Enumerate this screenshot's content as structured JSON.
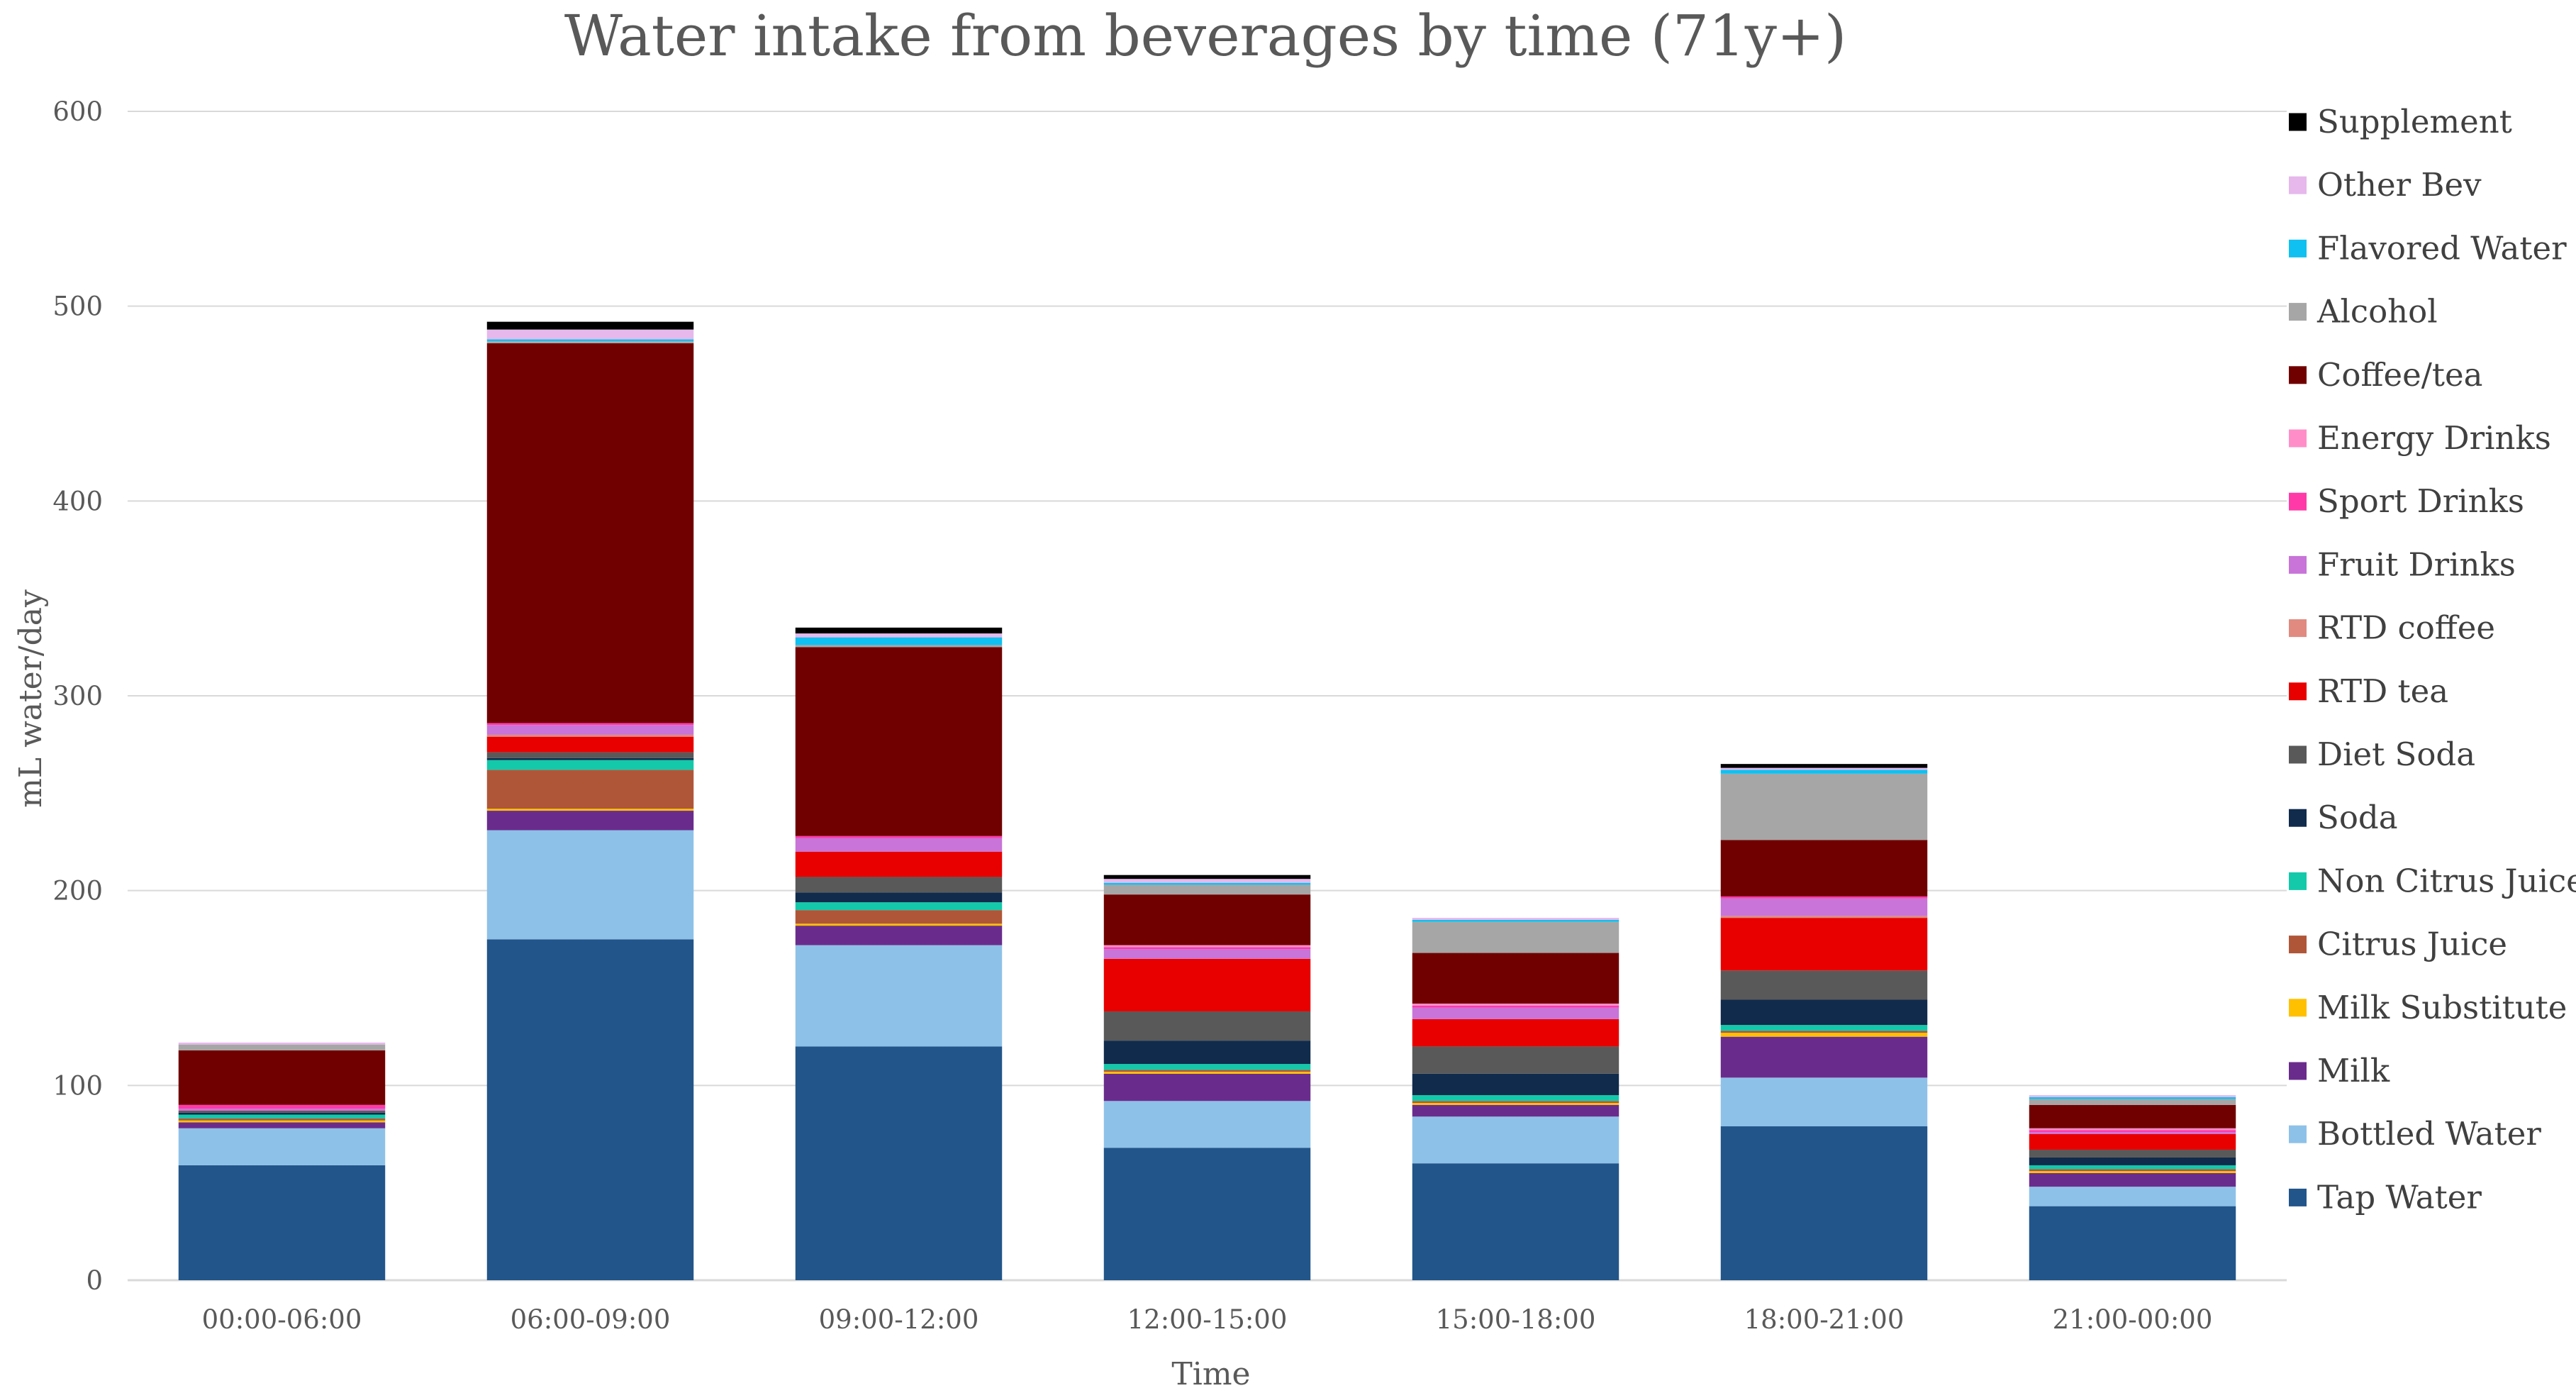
{
  "chart_data": {
    "type": "bar",
    "stacked": true,
    "title": "Water intake from beverages by time (71y+)",
    "xlabel": "Time",
    "ylabel": "mL water/day",
    "ylim": [
      0,
      600
    ],
    "yticks": [
      0,
      100,
      200,
      300,
      400,
      500,
      600
    ],
    "grid": true,
    "legend_position": "right",
    "categories": [
      "00:00-06:00",
      "06:00-09:00",
      "09:00-12:00",
      "12:00-15:00",
      "15:00-18:00",
      "18:00-21:00",
      "21:00-00:00"
    ],
    "series": [
      {
        "name": "Tap Water",
        "color": "#22558A",
        "values": [
          59,
          175,
          120,
          68,
          60,
          79,
          38
        ]
      },
      {
        "name": "Bottled Water",
        "color": "#8EC1E8",
        "values": [
          19,
          56,
          52,
          24,
          24,
          25,
          10
        ]
      },
      {
        "name": "Milk",
        "color": "#6A2C8C",
        "values": [
          3,
          10,
          10,
          14,
          6,
          21,
          7
        ]
      },
      {
        "name": "Milk Substitute",
        "color": "#FFC000",
        "values": [
          1,
          1,
          1,
          1,
          1,
          2,
          1
        ]
      },
      {
        "name": "Citrus Juice",
        "color": "#B05638",
        "values": [
          1,
          20,
          7,
          1,
          1,
          1,
          1
        ]
      },
      {
        "name": "Non Citrus Juice",
        "color": "#13C9AA",
        "values": [
          2,
          5,
          4,
          3,
          3,
          3,
          2
        ]
      },
      {
        "name": "Soda",
        "color": "#102B4C",
        "values": [
          1,
          1,
          5,
          12,
          11,
          13,
          4
        ]
      },
      {
        "name": "Diet Soda",
        "color": "#595959",
        "values": [
          1,
          3,
          8,
          15,
          14,
          15,
          4
        ]
      },
      {
        "name": "RTD tea",
        "color": "#E80000",
        "values": [
          0,
          8,
          13,
          27,
          14,
          27,
          8
        ]
      },
      {
        "name": "RTD coffee",
        "color": "#E08A80",
        "values": [
          0,
          1,
          0,
          0,
          0,
          1,
          0
        ]
      },
      {
        "name": "Fruit Drinks",
        "color": "#C874D8",
        "values": [
          1,
          5,
          7,
          5,
          6,
          9,
          1
        ]
      },
      {
        "name": "Sport Drinks",
        "color": "#FF3AA8",
        "values": [
          2,
          1,
          1,
          1,
          1,
          1,
          1
        ]
      },
      {
        "name": "Energy Drinks",
        "color": "#FF8EC8",
        "values": [
          0,
          0,
          0,
          1,
          1,
          0,
          1
        ]
      },
      {
        "name": "Coffee/tea",
        "color": "#700000",
        "values": [
          28,
          195,
          97,
          26,
          26,
          29,
          12
        ]
      },
      {
        "name": "Alcohol",
        "color": "#A6A6A6",
        "values": [
          3,
          1,
          1,
          5,
          16,
          34,
          3
        ]
      },
      {
        "name": "Flavored Water",
        "color": "#10C0F0",
        "values": [
          0,
          1,
          4,
          1,
          1,
          2,
          1
        ]
      },
      {
        "name": "Other Bev",
        "color": "#E6B8EC",
        "values": [
          1,
          5,
          2,
          2,
          1,
          1,
          1
        ]
      },
      {
        "name": "Supplement",
        "color": "#000000",
        "values": [
          0,
          4,
          3,
          2,
          0,
          2,
          0
        ]
      }
    ]
  }
}
